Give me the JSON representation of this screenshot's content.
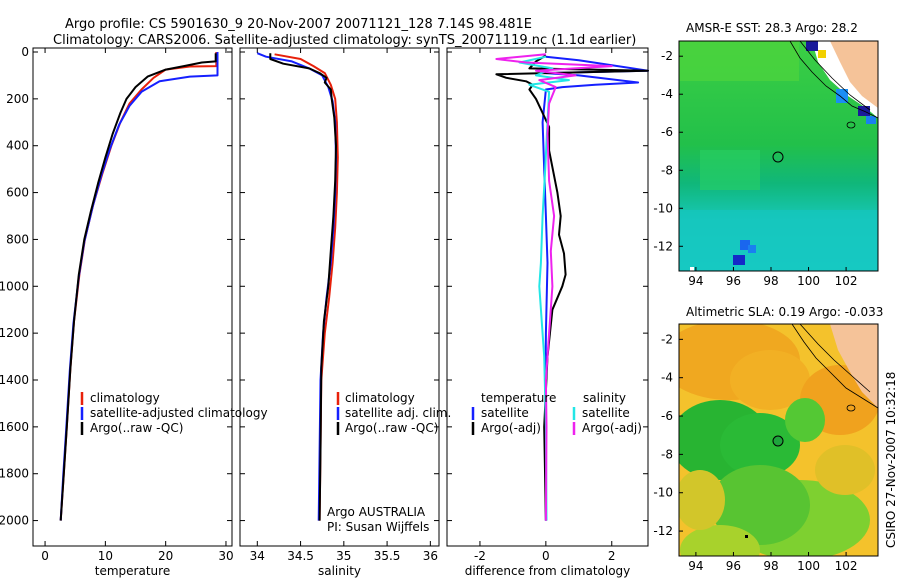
{
  "title_line1": "Argo profile: CS 5901630_9 20-Nov-2007 20071121_128 7.14S 98.481E",
  "title_line2": "Climatology: CARS2006. Satellite-adjusted climatology: synTS_20071119.nc (1.1d earlier)",
  "side_label": "CSIRO 27-Nov-2007 10:32:18",
  "colors": {
    "red": "#e8200a",
    "blue": "#1520ff",
    "black": "#000000",
    "cyan": "#22e6e6",
    "magenta": "#ee22ee"
  },
  "chart_data": [
    {
      "id": "temperature",
      "type": "line",
      "xlabel": "temperature",
      "ylabel": "",
      "xlim": [
        -2,
        31
      ],
      "ylim": [
        2100,
        0
      ],
      "xticks": [
        0,
        10,
        20,
        30
      ],
      "yticks": [
        0,
        200,
        400,
        600,
        800,
        1000,
        1200,
        1400,
        1600,
        1800,
        2000
      ],
      "legend": [
        "climatology",
        "satellite-adjusted climatology",
        "Argo(..raw -QC)"
      ],
      "series": [
        {
          "name": "climatology",
          "color": "red",
          "points": [
            [
              28.4,
              0
            ],
            [
              28.4,
              60
            ],
            [
              24,
              62
            ],
            [
              20,
              75
            ],
            [
              18,
              110
            ],
            [
              16,
              160
            ],
            [
              14,
              220
            ],
            [
              12.5,
              300
            ],
            [
              11,
              400
            ],
            [
              9.5,
              520
            ],
            [
              8,
              650
            ],
            [
              6.6,
              800
            ],
            [
              5.7,
              950
            ],
            [
              4.8,
              1150
            ],
            [
              4.2,
              1350
            ],
            [
              3.6,
              1600
            ],
            [
              3.1,
              1800
            ],
            [
              2.6,
              2000
            ]
          ]
        },
        {
          "name": "satellite-adjusted climatology",
          "color": "blue",
          "points": [
            [
              28.6,
              0
            ],
            [
              28.6,
              100
            ],
            [
              24,
              105
            ],
            [
              19,
              125
            ],
            [
              16,
              170
            ],
            [
              14,
              230
            ],
            [
              12.3,
              310
            ],
            [
              10.8,
              410
            ],
            [
              9.3,
              530
            ],
            [
              7.9,
              660
            ],
            [
              6.5,
              810
            ],
            [
              5.6,
              960
            ],
            [
              4.7,
              1160
            ],
            [
              4.1,
              1360
            ],
            [
              3.5,
              1610
            ],
            [
              3,
              1810
            ],
            [
              2.6,
              2000
            ]
          ]
        },
        {
          "name": "Argo(..raw -QC)",
          "color": "black",
          "points": [
            [
              28.3,
              5
            ],
            [
              28.3,
              40
            ],
            [
              26,
              45
            ],
            [
              23,
              60
            ],
            [
              20,
              75
            ],
            [
              17,
              105
            ],
            [
              15,
              150
            ],
            [
              13.5,
              200
            ],
            [
              12.5,
              260
            ],
            [
              11.2,
              350
            ],
            [
              10,
              450
            ],
            [
              8.8,
              560
            ],
            [
              7.6,
              680
            ],
            [
              6.5,
              800
            ],
            [
              5.6,
              950
            ],
            [
              4.8,
              1150
            ],
            [
              4.2,
              1350
            ],
            [
              3.6,
              1600
            ],
            [
              3.1,
              1800
            ],
            [
              2.6,
              2000
            ]
          ]
        }
      ]
    },
    {
      "id": "salinity",
      "type": "line",
      "xlabel": "salinity",
      "xlim": [
        33.8,
        36.1
      ],
      "ylim": [
        2100,
        0
      ],
      "xticks": [
        "34",
        "34.5",
        "35",
        "35.5",
        "36"
      ],
      "legend": [
        "climatology",
        "satellite adj. clim.",
        "Argo(..raw -QC)"
      ],
      "annotation": [
        "Argo AUSTRALIA",
        "PI: Susan Wijffels"
      ],
      "series": [
        {
          "name": "climatology",
          "color": "red",
          "points": [
            [
              34.2,
              10
            ],
            [
              34.5,
              30
            ],
            [
              34.65,
              60
            ],
            [
              34.78,
              90
            ],
            [
              34.85,
              140
            ],
            [
              34.9,
              200
            ],
            [
              34.92,
              300
            ],
            [
              34.93,
              450
            ],
            [
              34.92,
              600
            ],
            [
              34.9,
              750
            ],
            [
              34.87,
              900
            ],
            [
              34.83,
              1050
            ],
            [
              34.78,
              1200
            ],
            [
              34.74,
              1400
            ],
            [
              34.73,
              1700
            ],
            [
              34.72,
              2000
            ]
          ]
        },
        {
          "name": "satellite adj. clim.",
          "color": "blue",
          "points": [
            [
              34.0,
              5
            ],
            [
              34.1,
              20
            ],
            [
              34.4,
              40
            ],
            [
              34.6,
              70
            ],
            [
              34.75,
              100
            ],
            [
              34.82,
              150
            ],
            [
              34.87,
              210
            ],
            [
              34.9,
              300
            ],
            [
              34.91,
              450
            ],
            [
              34.9,
              600
            ],
            [
              34.88,
              750
            ],
            [
              34.85,
              900
            ],
            [
              34.8,
              1050
            ],
            [
              34.76,
              1200
            ],
            [
              34.73,
              1400
            ],
            [
              34.72,
              1700
            ],
            [
              34.71,
              2000
            ]
          ]
        },
        {
          "name": "Argo(..raw -QC)",
          "color": "black",
          "points": [
            [
              34.15,
              5
            ],
            [
              34.15,
              30
            ],
            [
              34.3,
              50
            ],
            [
              34.6,
              70
            ],
            [
              34.72,
              90
            ],
            [
              34.8,
              110
            ],
            [
              34.78,
              130
            ],
            [
              34.85,
              160
            ],
            [
              34.86,
              200
            ],
            [
              34.89,
              280
            ],
            [
              34.91,
              400
            ],
            [
              34.9,
              550
            ],
            [
              34.88,
              700
            ],
            [
              34.85,
              850
            ],
            [
              34.82,
              1000
            ],
            [
              34.77,
              1150
            ],
            [
              34.74,
              1350
            ],
            [
              34.73,
              1700
            ],
            [
              34.72,
              2000
            ]
          ]
        }
      ]
    },
    {
      "id": "difference",
      "type": "line",
      "xlabel": "difference from climatology",
      "xlim": [
        -3,
        3.1
      ],
      "ylim": [
        2100,
        0
      ],
      "xticks": [
        "-2",
        "0",
        "2"
      ],
      "legend_left_title": "temperature",
      "legend_right_title": "salinity",
      "legend_left": [
        "satellite",
        "Argo(-adj)"
      ],
      "legend_right": [
        "satellite",
        "Argo(-adj)"
      ],
      "series": [
        {
          "name": "temperature satellite",
          "color": "blue",
          "points": [
            [
              0,
              20
            ],
            [
              1,
              35
            ],
            [
              3.1,
              80
            ],
            [
              0,
              90
            ],
            [
              1,
              100
            ],
            [
              2.8,
              130
            ],
            [
              1.5,
              140
            ],
            [
              0.5,
              150
            ],
            [
              0,
              160
            ],
            [
              -0.1,
              300
            ],
            [
              -0.05,
              500
            ],
            [
              0,
              700
            ],
            [
              0.05,
              900
            ],
            [
              0,
              1200
            ],
            [
              -0.02,
              1600
            ],
            [
              0,
              2000
            ]
          ]
        },
        {
          "name": "temperature Argo(-adj)",
          "color": "black",
          "points": [
            [
              0,
              15
            ],
            [
              -0.3,
              40
            ],
            [
              -0.5,
              70
            ],
            [
              3.1,
              80
            ],
            [
              -1.5,
              95
            ],
            [
              -1.2,
              110
            ],
            [
              -0.6,
              125
            ],
            [
              -0.4,
              140
            ],
            [
              -0.5,
              160
            ],
            [
              -0.3,
              200
            ],
            [
              -0.1,
              260
            ],
            [
              0.1,
              320
            ],
            [
              0.1,
              420
            ],
            [
              0.35,
              600
            ],
            [
              0.45,
              700
            ],
            [
              0.4,
              780
            ],
            [
              0.55,
              860
            ],
            [
              0.6,
              950
            ],
            [
              0.5,
              1000
            ],
            [
              0.2,
              1100
            ],
            [
              0.05,
              1300
            ],
            [
              -0.05,
              1600
            ],
            [
              0,
              2000
            ]
          ]
        },
        {
          "name": "salinity satellite",
          "color": "cyan",
          "points": [
            [
              0,
              20
            ],
            [
              -0.8,
              45
            ],
            [
              0.2,
              70
            ],
            [
              -0.3,
              100
            ],
            [
              0.7,
              120
            ],
            [
              -0.5,
              140
            ],
            [
              0.1,
              170
            ],
            [
              0.05,
              300
            ],
            [
              -0.02,
              500
            ],
            [
              -0.1,
              700
            ],
            [
              -0.15,
              900
            ],
            [
              -0.2,
              1000
            ],
            [
              -0.05,
              1300
            ],
            [
              0,
              1600
            ],
            [
              0.02,
              2000
            ]
          ]
        },
        {
          "name": "salinity Argo(-adj)",
          "color": "magenta",
          "points": [
            [
              0,
              10
            ],
            [
              -1.5,
              30
            ],
            [
              -0.6,
              45
            ],
            [
              2,
              60
            ],
            [
              -0.3,
              80
            ],
            [
              0.9,
              100
            ],
            [
              -0.2,
              120
            ],
            [
              0.3,
              150
            ],
            [
              0.1,
              220
            ],
            [
              0.05,
              350
            ],
            [
              0.1,
              550
            ],
            [
              0.25,
              700
            ],
            [
              0.15,
              850
            ],
            [
              0.2,
              1000
            ],
            [
              0.1,
              1200
            ],
            [
              0,
              1400
            ],
            [
              0.02,
              1600
            ],
            [
              0,
              2000
            ]
          ]
        }
      ]
    }
  ],
  "map_sst": {
    "title": "AMSR-E SST: 28.3  Argo: 28.2",
    "xticks": [
      "94",
      "96",
      "98",
      "100",
      "102"
    ],
    "yticks": [
      "-2",
      "-4",
      "-6",
      "-8",
      "-10",
      "-12"
    ]
  },
  "map_sla": {
    "title": "Altimetric SLA: 0.19  Argo: -0.033",
    "xticks": [
      "94",
      "96",
      "98",
      "100",
      "102"
    ],
    "yticks": [
      "-2",
      "-4",
      "-6",
      "-8",
      "-10",
      "-12"
    ]
  }
}
